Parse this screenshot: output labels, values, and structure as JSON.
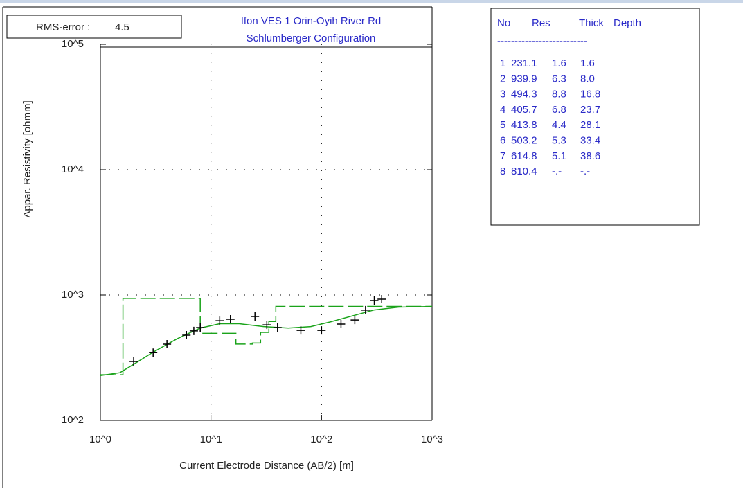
{
  "chart_data": {
    "type": "line",
    "rms_label": "RMS-error :",
    "rms_value": 4.5,
    "title": "Ifon VES 1 Orin-Oyih River Rd",
    "subtitle": "Schlumberger Configuration",
    "xlabel": "Current Electrode Distance (AB/2) [m]",
    "ylabel": "Appar. Resistivity [ohmm]",
    "xscale": "log",
    "yscale": "log",
    "xlim": [
      1,
      1000
    ],
    "ylim": [
      100,
      100000
    ],
    "xticks": [
      {
        "value": 1,
        "label": "10^0"
      },
      {
        "value": 10,
        "label": "10^1"
      },
      {
        "value": 100,
        "label": "10^2"
      },
      {
        "value": 1000,
        "label": "10^3"
      }
    ],
    "yticks": [
      {
        "value": 100,
        "label": "10^2"
      },
      {
        "value": 1000,
        "label": "10^3"
      },
      {
        "value": 10000,
        "label": "10^4"
      },
      {
        "value": 100000,
        "label": "10^5"
      }
    ],
    "grid": true,
    "observed": {
      "color": "#000000",
      "x": [
        2,
        3,
        4,
        6,
        7,
        8,
        12,
        15,
        25,
        32,
        40,
        65,
        100,
        150,
        200,
        250,
        300,
        350
      ],
      "values": [
        295,
        347,
        405,
        478,
        517,
        550,
        624,
        641,
        674,
        578,
        550,
        522,
        522,
        586,
        632,
        757,
        903,
        926
      ]
    },
    "calculated": {
      "color": "#1aa31a",
      "x": [
        1,
        1.5,
        2,
        3,
        5,
        8,
        12,
        18,
        30,
        50,
        80,
        120,
        200,
        300,
        500,
        1000
      ],
      "values": [
        228,
        240,
        280,
        350,
        450,
        545,
        590,
        590,
        560,
        545,
        560,
        610,
        690,
        760,
        800,
        810
      ]
    },
    "model_color": "#1aa31a",
    "layers": {
      "columns": [
        "No",
        "Res",
        "Thick",
        "Depth"
      ],
      "separator": "--------------------------",
      "no": [
        1,
        2,
        3,
        4,
        5,
        6,
        7,
        8
      ],
      "res": {
        "values": [
          231.1,
          939.9,
          494.3,
          405.7,
          413.8,
          503.2,
          614.8,
          810.4
        ]
      },
      "thick": {
        "values": [
          1.6,
          6.3,
          8.8,
          6.8,
          4.4,
          5.3,
          5.1,
          null
        ],
        "value_labels": [
          "1.6",
          "6.3",
          "8.8",
          "6.8",
          "4.4",
          "5.3",
          "5.1",
          "-.-"
        ]
      },
      "depth": {
        "values": [
          1.6,
          8.0,
          16.8,
          23.7,
          28.1,
          33.4,
          38.6,
          null
        ],
        "value_labels": [
          "1.6",
          "8.0",
          "16.8",
          "23.7",
          "28.1",
          "33.4",
          "38.6",
          "-.-"
        ]
      }
    }
  }
}
